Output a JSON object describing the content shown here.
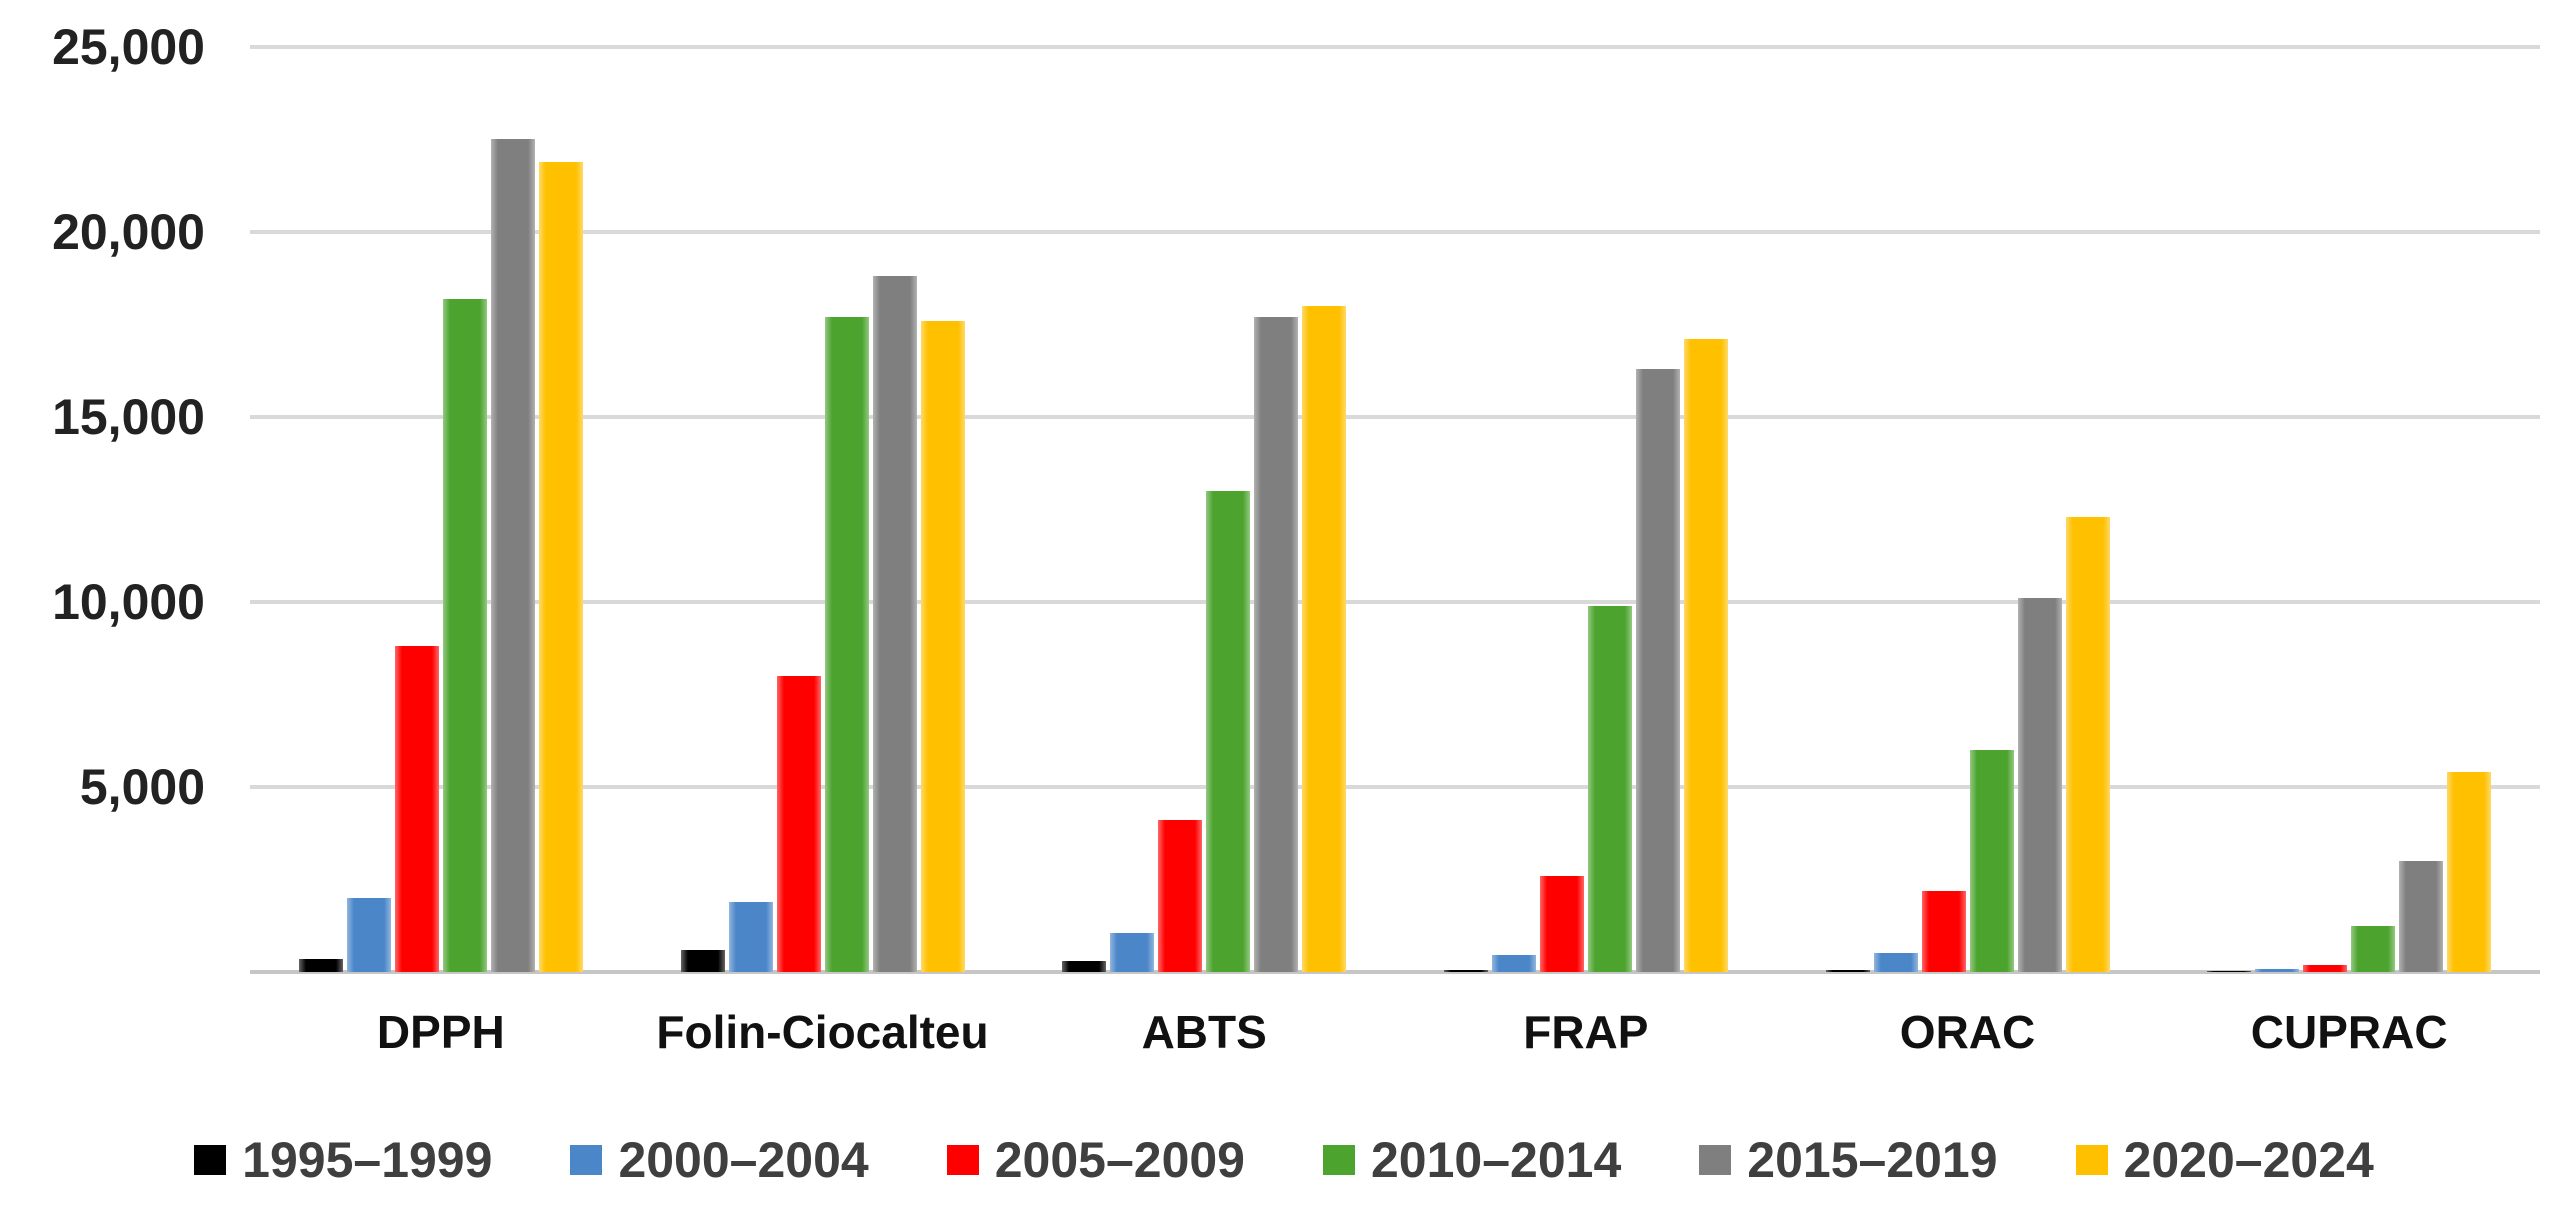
{
  "chart_data": {
    "type": "bar",
    "title": "",
    "xlabel": "",
    "ylabel": "",
    "categories": [
      "DPPH",
      "Folin-Ciocalteu",
      "ABTS",
      "FRAP",
      "ORAC",
      "CUPRAC"
    ],
    "series": [
      {
        "name": "1995–1999",
        "color": "#000000",
        "values": [
          350,
          600,
          300,
          60,
          60,
          20
        ]
      },
      {
        "name": "2000–2004",
        "color": "#4A86C8",
        "values": [
          2000,
          1900,
          1050,
          450,
          520,
          80
        ]
      },
      {
        "name": "2005–2009",
        "color": "#FF0000",
        "values": [
          8800,
          8000,
          4100,
          2600,
          2200,
          200
        ]
      },
      {
        "name": "2010–2014",
        "color": "#4CA42F",
        "values": [
          18200,
          17700,
          13000,
          9900,
          6000,
          1250
        ]
      },
      {
        "name": "2015–2019",
        "color": "#7F7F7F",
        "values": [
          22500,
          18800,
          17700,
          16300,
          10100,
          3000
        ]
      },
      {
        "name": "2020–2024",
        "color": "#FFC000",
        "values": [
          21900,
          17600,
          18000,
          17100,
          12300,
          5400
        ]
      }
    ],
    "ylim": [
      0,
      25000
    ],
    "ytick_interval": 5000,
    "yticks": [
      {
        "value": 5000,
        "label": "5,000"
      },
      {
        "value": 10000,
        "label": "10,000"
      },
      {
        "value": 15000,
        "label": "15,000"
      },
      {
        "value": 20000,
        "label": "20,000"
      },
      {
        "value": 25000,
        "label": "25,000"
      }
    ],
    "grid": true,
    "legend_position": "bottom",
    "style_colors": {
      "gridline": "#D9D9D9",
      "axis_line": "#C6C6C6",
      "tick_label": "#222222",
      "category_label": "#111111",
      "legend_text": "#3F3F3F",
      "background": "#FFFFFF"
    }
  }
}
